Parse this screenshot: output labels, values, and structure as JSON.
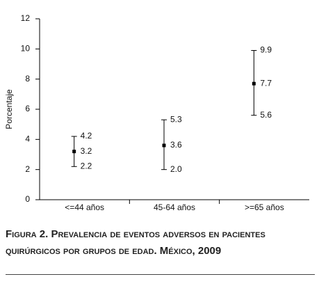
{
  "chart_data": {
    "type": "errorbar",
    "ylabel": "Porcentaje",
    "categories": [
      "<=44 años",
      "45-64 años",
      ">=65 años"
    ],
    "series": [
      {
        "color": "#000000",
        "values": [
          3.2,
          3.6,
          7.7
        ],
        "value_labels": [
          "3.2",
          "3.6",
          "7.7"
        ],
        "lower": [
          2.2,
          2.0,
          5.6
        ],
        "lower_labels": [
          "2.2",
          "2.0",
          "5.6"
        ],
        "upper": [
          4.2,
          5.3,
          9.9
        ],
        "upper_labels": [
          "4.2",
          "5.3",
          "9.9"
        ]
      }
    ],
    "ylim": [
      0,
      12
    ],
    "yticks": [
      0,
      2,
      4,
      6,
      8,
      10,
      12
    ],
    "grid": false
  },
  "caption": "Figura 2. Prevalencia de eventos adversos en pacientes quirúrgicos por grupos de edad. México, 2009"
}
